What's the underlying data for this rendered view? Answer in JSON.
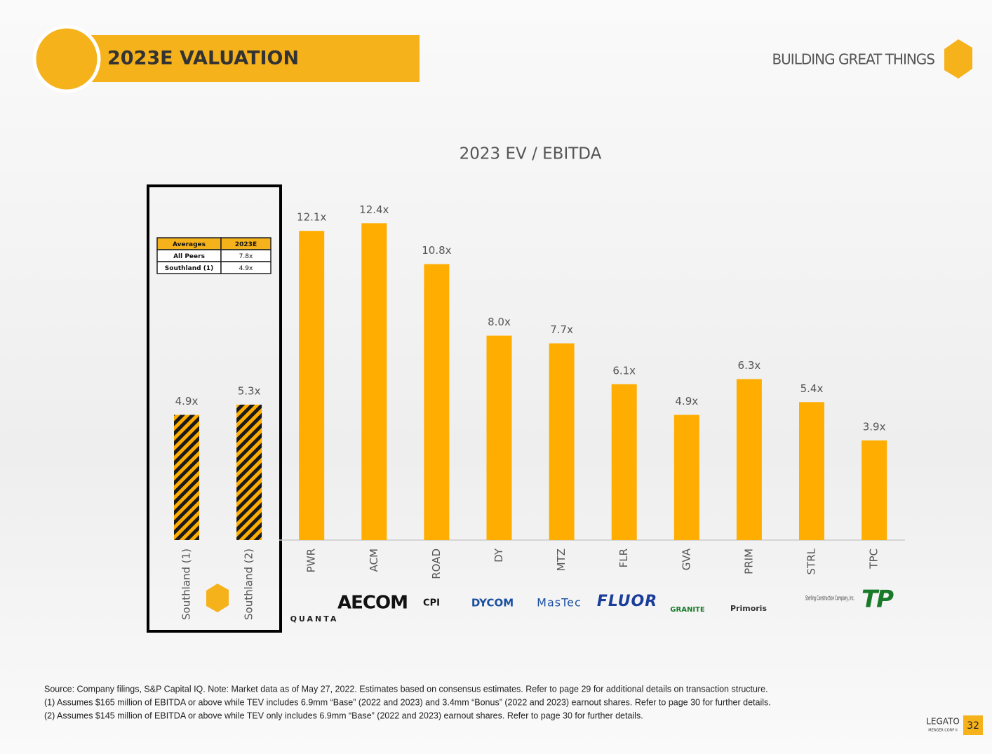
{
  "header": {
    "title": "2023E VALUATION",
    "tagline": "BUILDING GREAT THINGS"
  },
  "chart_data": {
    "type": "bar",
    "title": "2023 EV / EBITDA",
    "categories": [
      "Southland (1)",
      "Southland (2)",
      "PWR",
      "ACM",
      "ROAD",
      "DY",
      "MTZ",
      "FLR",
      "GVA",
      "PRIM",
      "STRL",
      "TPC"
    ],
    "values": [
      4.9,
      5.3,
      12.1,
      12.4,
      10.8,
      8.0,
      7.7,
      6.1,
      4.9,
      6.3,
      5.4,
      3.9
    ],
    "value_labels": [
      "4.9x",
      "5.3x",
      "12.1x",
      "12.4x",
      "10.8x",
      "8.0x",
      "7.7x",
      "6.1x",
      "4.9x",
      "6.3x",
      "5.4x",
      "3.9x"
    ],
    "color": "#ffad00",
    "patterns": [
      "hatched",
      "hatched",
      "solid",
      "solid",
      "solid",
      "solid",
      "solid",
      "solid",
      "solid",
      "solid",
      "solid",
      "solid"
    ],
    "ylim": [
      0,
      14
    ]
  },
  "averages_table": {
    "header": [
      "Averages",
      "2023E"
    ],
    "rows": [
      [
        "All Peers",
        "7.8x"
      ],
      [
        "Southland (1)",
        "4.9x"
      ]
    ]
  },
  "logos": [
    "QUANTA",
    "AECOM",
    "CPI",
    "DYCOM",
    "MasTec",
    "FLUOR",
    "GRANITE",
    "Primoris",
    "Sterling Construction Company, Inc.",
    "TP"
  ],
  "footnotes": [
    "Source: Company filings, S&P Capital IQ. Note: Market data as of May 27, 2022. Estimates based on consensus estimates. Refer to page 29 for additional details on transaction structure.",
    "(1)  Assumes  $165 million of EBITDA or above while TEV includes 6.9mm “Base” (2022 and 2023) and 3.4mm “Bonus” (2022 and 2023) earnout shares. Refer to page 30 for further details.",
    "(2)  Assumes  $145 million of EBITDA or above while TEV only includes 6.9mm “Base” (2022 and 2023) earnout shares. Refer to page 30 for further details."
  ],
  "footer": {
    "brand": "LEGATO",
    "brand_sub": "MERGER CORP II",
    "page": "32"
  }
}
